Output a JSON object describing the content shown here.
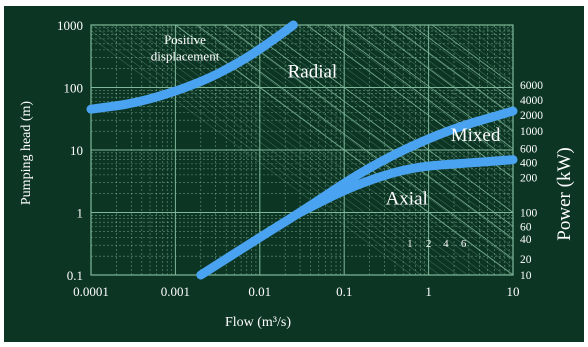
{
  "chart_data": {
    "type": "line",
    "title": "",
    "xlabel": "Flow (m³/s)",
    "ylabel": "Pumping head (m)",
    "y2label": "Power (kW)",
    "x_scale": "log",
    "y_scale": "log",
    "xlim": [
      0.0001,
      10
    ],
    "ylim": [
      0.1,
      1000
    ],
    "x_ticks": [
      "0.0001",
      "0.001",
      "0.01",
      "0.1",
      "1",
      "10"
    ],
    "y_ticks": [
      "0.1",
      "1",
      "10",
      "100",
      "1000"
    ],
    "power_ticks": [
      {
        "label": "6000",
        "head": 110
      },
      {
        "label": "4000",
        "head": 63
      },
      {
        "label": "2000",
        "head": 36
      },
      {
        "label": "1000",
        "head": 20
      },
      {
        "label": "600",
        "head": 10.5
      },
      {
        "label": "400",
        "head": 6.3
      },
      {
        "label": "200",
        "head": 3.6
      },
      {
        "label": "100",
        "head": 1.0
      },
      {
        "label": "60",
        "head": 0.6
      },
      {
        "label": "40",
        "head": 0.38
      },
      {
        "label": "20",
        "head": 0.18
      },
      {
        "label": "10",
        "head": 0.1
      }
    ],
    "power_line_labels": [
      {
        "label": "1",
        "flow": 0.6,
        "head": 0.28
      },
      {
        "label": "2",
        "flow": 1.0,
        "head": 0.28
      },
      {
        "label": "4",
        "flow": 1.6,
        "head": 0.28
      },
      {
        "label": "6",
        "flow": 2.6,
        "head": 0.28
      }
    ],
    "region_labels": [
      {
        "text": "Positive",
        "flow": 0.0013,
        "head": 500
      },
      {
        "text": "displacement",
        "flow": 0.0013,
        "head": 270
      },
      {
        "text": "Radial",
        "flow": 0.042,
        "head": 145
      },
      {
        "text": "Mixed",
        "flow": 3.6,
        "head": 14
      },
      {
        "text": "Axial",
        "flow": 0.55,
        "head": 1.35
      }
    ],
    "series": [
      {
        "x": [
          0.0001,
          0.0004,
          0.002,
          0.006,
          0.013,
          0.025
        ],
        "y": [
          45,
          58,
          120,
          260,
          520,
          1000
        ]
      },
      {
        "x": [
          0.002,
          0.01,
          0.03,
          0.2,
          1.5,
          10
        ],
        "y": [
          0.1,
          0.4,
          1.0,
          5.5,
          20,
          42
        ]
      },
      {
        "x": [
          0.03,
          0.1,
          0.3,
          0.8,
          3,
          10
        ],
        "y": [
          1.0,
          2.3,
          4.0,
          5.5,
          6.2,
          7.0
        ]
      }
    ],
    "grid": true,
    "colors": {
      "background": "#0d3524",
      "grid": "#7fb89a",
      "curve": "#4aa3f0",
      "text": "#ffffff"
    }
  }
}
